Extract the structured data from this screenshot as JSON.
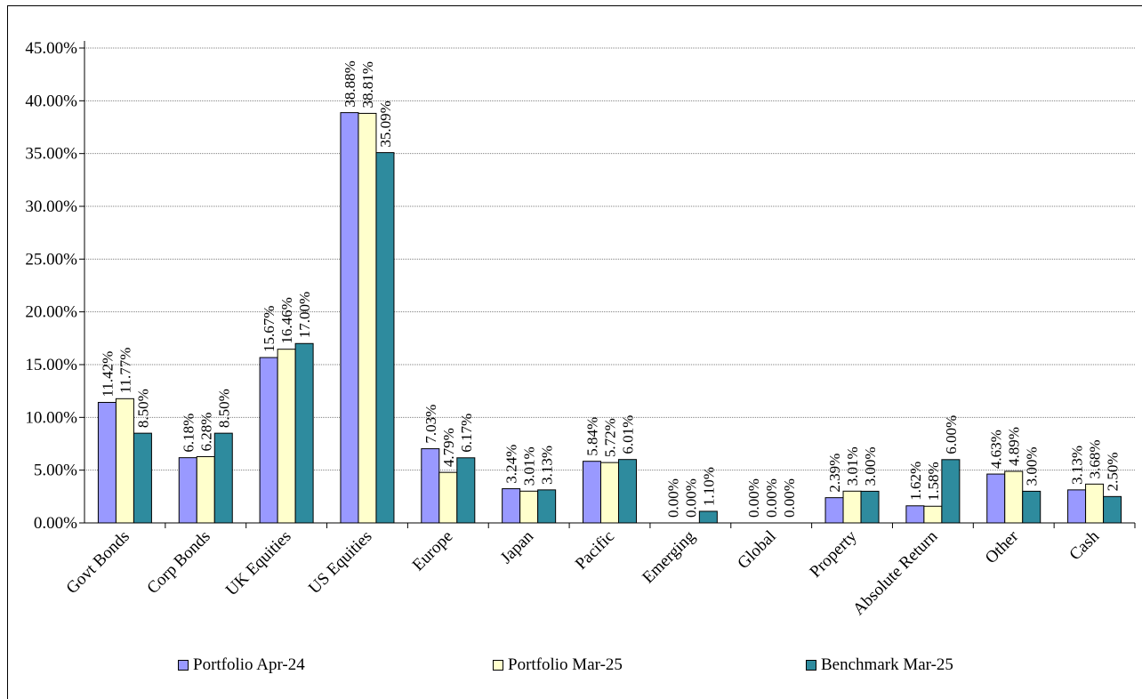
{
  "chart_data": {
    "type": "bar",
    "categories": [
      "Govt Bonds",
      "Corp Bonds",
      "UK Equities",
      "US Equities",
      "Europe",
      "Japan",
      "Pacific",
      "Emerging",
      "Global",
      "Property",
      "Absolute Return",
      "Other",
      "Cash"
    ],
    "series": [
      {
        "name": "Portfolio Apr-24",
        "color": "#9999ff",
        "values": [
          11.42,
          6.18,
          15.67,
          38.88,
          7.03,
          3.24,
          5.84,
          0.0,
          0.0,
          2.39,
          1.62,
          4.63,
          3.13
        ],
        "labels": [
          "11.42%",
          "6.18%",
          "15.67%",
          "38.88%",
          "7.03%",
          "3.24%",
          "5.84%",
          "0.00%",
          "0.00%",
          "2.39%",
          "1.62%",
          "4.63%",
          "3.13%"
        ]
      },
      {
        "name": "Portfolio Mar-25",
        "color": "#ffffcc",
        "values": [
          11.77,
          6.28,
          16.46,
          38.81,
          4.79,
          3.01,
          5.72,
          0.0,
          0.0,
          3.01,
          1.58,
          4.89,
          3.68
        ],
        "labels": [
          "11.77%",
          "6.28%",
          "16.46%",
          "38.81%",
          "4.79%",
          "3.01%",
          "5.72%",
          "0.00%",
          "0.00%",
          "3.01%",
          "1.58%",
          "4.89%",
          "3.68%"
        ]
      },
      {
        "name": "Benchmark Mar-25",
        "color": "#2e8b9e",
        "values": [
          8.5,
          8.5,
          17.0,
          35.09,
          6.17,
          3.13,
          6.01,
          1.1,
          0.0,
          3.0,
          6.0,
          3.0,
          2.5
        ],
        "labels": [
          "8.50%",
          "8.50%",
          "17.00%",
          "35.09%",
          "6.17%",
          "3.13%",
          "6.01%",
          "1.10%",
          "0.00%",
          "3.00%",
          "6.00%",
          "3.00%",
          "2.50%"
        ]
      }
    ],
    "yticks": [
      "0.00%",
      "5.00%",
      "10.00%",
      "15.00%",
      "20.00%",
      "25.00%",
      "30.00%",
      "35.00%",
      "40.00%",
      "45.00%"
    ],
    "ylim": [
      0,
      45
    ],
    "grid": true,
    "legend_position": "bottom",
    "title": "",
    "xlabel": "",
    "ylabel": ""
  }
}
